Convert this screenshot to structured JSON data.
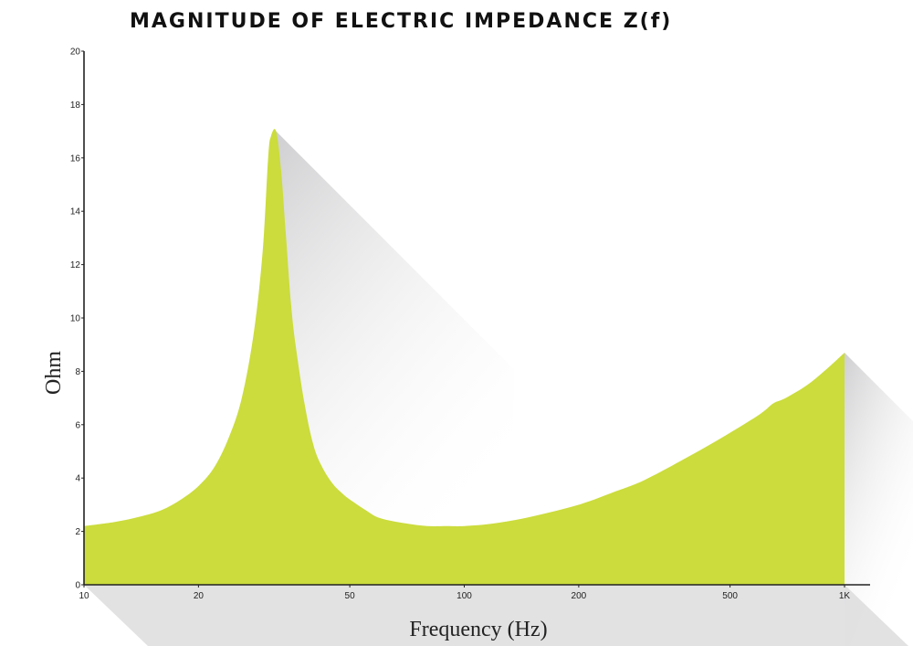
{
  "chart_data": {
    "type": "area",
    "title": "MAGNITUDE OF ELECTRIC IMPEDANCE Z(f)",
    "xlabel": "Frequency (Hz)",
    "ylabel": "Ohm",
    "x_scale": "log",
    "xlim": [
      10,
      1000
    ],
    "ylim": [
      0,
      20
    ],
    "x_ticks": [
      {
        "value": 10,
        "label": "10"
      },
      {
        "value": 20,
        "label": "20"
      },
      {
        "value": 50,
        "label": "50"
      },
      {
        "value": 100,
        "label": "100"
      },
      {
        "value": 200,
        "label": "200"
      },
      {
        "value": 500,
        "label": "500"
      },
      {
        "value": 1000,
        "label": "1K"
      }
    ],
    "y_ticks": [
      0,
      2,
      4,
      6,
      8,
      10,
      12,
      14,
      16,
      18,
      20
    ],
    "grid": false,
    "colors": {
      "fill": "#cbdc3c",
      "axis": "#222222",
      "shadow": "#d4d4d6"
    },
    "series": [
      {
        "x": [
          10,
          12,
          14,
          16,
          18,
          20,
          22,
          24,
          26,
          28,
          29.5,
          30.5,
          31,
          32,
          33,
          34,
          35,
          36,
          38,
          40,
          42,
          45,
          48,
          50,
          55,
          60,
          70,
          80,
          90,
          100,
          120,
          150,
          200,
          250,
          300,
          400,
          500,
          600,
          650,
          700,
          800,
          900,
          1000
        ],
        "y": [
          2.2,
          2.35,
          2.55,
          2.8,
          3.2,
          3.7,
          4.4,
          5.5,
          7.0,
          9.5,
          12.5,
          16.0,
          16.8,
          17.0,
          15.5,
          13.0,
          10.6,
          9.0,
          6.8,
          5.3,
          4.5,
          3.8,
          3.4,
          3.2,
          2.8,
          2.5,
          2.3,
          2.2,
          2.2,
          2.2,
          2.3,
          2.55,
          3.0,
          3.5,
          3.95,
          4.9,
          5.7,
          6.4,
          6.8,
          7.0,
          7.5,
          8.1,
          8.7
        ]
      }
    ]
  }
}
